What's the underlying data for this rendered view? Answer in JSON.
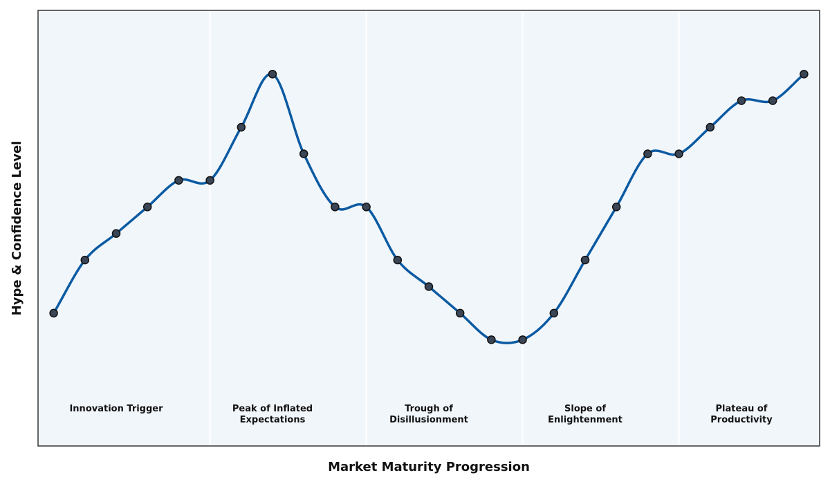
{
  "chart_data": {
    "type": "line",
    "title": "",
    "xlabel": "Market Maturity Progression",
    "ylabel": "Hype & Confidence Level",
    "x": [
      0,
      1,
      2,
      3,
      4,
      5,
      6,
      7,
      8,
      9,
      10,
      11,
      12,
      13,
      14,
      15,
      16,
      17,
      18,
      19,
      20,
      21,
      22,
      23,
      24
    ],
    "series": [
      {
        "name": "",
        "values": [
          6.3,
          7.3,
          7.8,
          8.3,
          8.8,
          8.8,
          9.8,
          10.8,
          9.3,
          8.3,
          8.3,
          7.3,
          6.8,
          6.3,
          5.8,
          5.8,
          6.3,
          7.3,
          8.3,
          9.3,
          9.3,
          9.8,
          10.3,
          10.3,
          10.8
        ]
      }
    ],
    "xlim": [
      -0.5,
      24.5
    ],
    "ylim": [
      3.8,
      12.0
    ],
    "grid": false,
    "phases": [
      {
        "label_lines": [
          "Innovation Trigger"
        ],
        "x_center": 2
      },
      {
        "label_lines": [
          "Peak of Inflated",
          "Expectations"
        ],
        "x_center": 7
      },
      {
        "label_lines": [
          "Trough of",
          "Disillusionment"
        ],
        "x_center": 12
      },
      {
        "label_lines": [
          "Slope of",
          "Enlightenment"
        ],
        "x_center": 17
      },
      {
        "label_lines": [
          "Plateau of",
          "Productivity"
        ],
        "x_center": 22
      }
    ],
    "phase_boundaries": [
      5,
      10,
      15,
      20
    ],
    "colors": {
      "line": "#0b5aa2",
      "marker_fill": "#3a4555",
      "marker_edge": "#111111",
      "background": "#f1f6fb",
      "frame": "#333333",
      "divider": "#ffffff"
    }
  }
}
